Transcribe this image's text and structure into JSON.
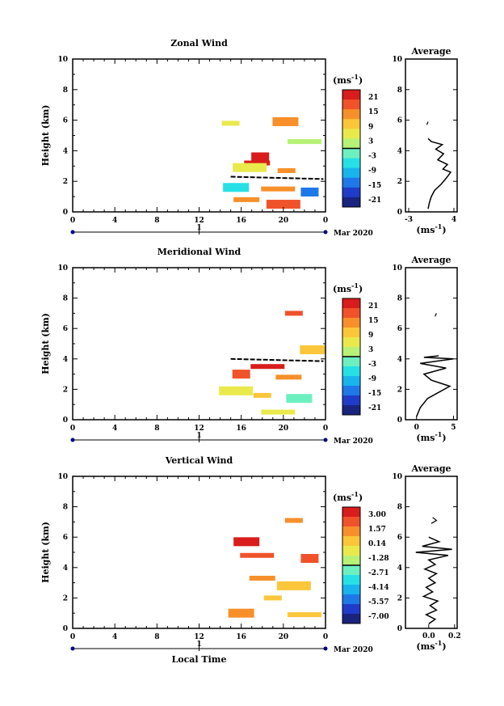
{
  "chart_data": [
    {
      "type": "heatmap",
      "title": "Zonal Wind",
      "ylabel": "Height (km)",
      "xlabel": "",
      "x_ticks": [
        "0",
        "4",
        "8",
        "12",
        "16",
        "20",
        "0"
      ],
      "y_ticks": [
        "0",
        "2",
        "4",
        "6",
        "8",
        "10"
      ],
      "xlim": [
        0,
        24
      ],
      "ylim": [
        0,
        10
      ],
      "date_marker": "1",
      "date_label": "Mar 2020",
      "colorbar": {
        "unit": "(ms",
        "unit_sup": "-1",
        "unit_close": ")",
        "ticks": [
          "21",
          "15",
          "9",
          "3",
          "-3",
          "-9",
          "-15",
          "-21"
        ]
      },
      "cells": [
        {
          "x": 15.0,
          "y": 5.8,
          "v": 3
        },
        {
          "x": 20.2,
          "y": 5.9,
          "v": 5
        },
        {
          "x": 22.0,
          "y": 4.6,
          "v": 1
        },
        {
          "x": 17.8,
          "y": 3.6,
          "v": 9
        },
        {
          "x": 17.5,
          "y": 3.2,
          "v": 9
        },
        {
          "x": 16.8,
          "y": 2.9,
          "v": 3
        },
        {
          "x": 20.3,
          "y": 2.7,
          "v": 6
        },
        {
          "x": 15.5,
          "y": 1.6,
          "v": -3
        },
        {
          "x": 19.5,
          "y": 1.5,
          "v": 5
        },
        {
          "x": 22.5,
          "y": 1.3,
          "v": -5
        },
        {
          "x": 16.5,
          "y": 0.8,
          "v": 6
        },
        {
          "x": 20.0,
          "y": 0.5,
          "v": 8
        }
      ],
      "contour_height_km": 2.3,
      "average": {
        "title": "Average",
        "xlabel": "(ms",
        "xlabel_sup": "-1",
        "xlabel_close": ")",
        "x_ticks": [
          "-3",
          "4"
        ],
        "xlim": [
          -3.5,
          4.5
        ],
        "ylim": [
          0,
          10
        ],
        "y_ticks": [
          "0",
          "2",
          "4",
          "6",
          "8",
          "10"
        ],
        "profile": [
          {
            "x": 0.0,
            "y": 0.2
          },
          {
            "x": 0.2,
            "y": 0.6
          },
          {
            "x": 0.5,
            "y": 1.0
          },
          {
            "x": 1.0,
            "y": 1.4
          },
          {
            "x": 2.0,
            "y": 1.8
          },
          {
            "x": 2.8,
            "y": 2.2
          },
          {
            "x": 3.5,
            "y": 2.6
          },
          {
            "x": 2.3,
            "y": 2.8
          },
          {
            "x": 3.0,
            "y": 3.1
          },
          {
            "x": 1.5,
            "y": 3.4
          },
          {
            "x": 2.4,
            "y": 3.8
          },
          {
            "x": 1.2,
            "y": 4.1
          },
          {
            "x": 2.2,
            "y": 4.4
          },
          {
            "x": 0.5,
            "y": 4.6
          },
          {
            "x": 0.0,
            "y": 4.8
          }
        ],
        "profile_upper": [
          {
            "x": -0.2,
            "y": 5.7
          },
          {
            "x": 0.0,
            "y": 5.9
          }
        ]
      }
    },
    {
      "type": "heatmap",
      "title": "Meridional Wind",
      "ylabel": "Height (km)",
      "xlabel": "",
      "x_ticks": [
        "0",
        "4",
        "8",
        "12",
        "16",
        "20",
        "0"
      ],
      "y_ticks": [
        "0",
        "2",
        "4",
        "6",
        "8",
        "10"
      ],
      "xlim": [
        0,
        24
      ],
      "ylim": [
        0,
        10
      ],
      "date_marker": "1",
      "date_label": "Mar 2020",
      "colorbar": {
        "unit": "(ms",
        "unit_sup": "-1",
        "unit_close": ")",
        "ticks": [
          "21",
          "15",
          "9",
          "3",
          "-3",
          "-9",
          "-15",
          "-21"
        ]
      },
      "cells": [
        {
          "x": 21.0,
          "y": 7.0,
          "v": 5
        },
        {
          "x": 22.8,
          "y": 4.6,
          "v": 3
        },
        {
          "x": 18.5,
          "y": 3.5,
          "v": 6
        },
        {
          "x": 16.0,
          "y": 3.0,
          "v": 5
        },
        {
          "x": 20.5,
          "y": 2.8,
          "v": 4
        },
        {
          "x": 15.5,
          "y": 1.9,
          "v": 2
        },
        {
          "x": 18.0,
          "y": 1.6,
          "v": 3
        },
        {
          "x": 21.5,
          "y": 1.4,
          "v": -1
        },
        {
          "x": 19.5,
          "y": 0.5,
          "v": 2
        }
      ],
      "contour_height_km": 4.0,
      "average": {
        "title": "Average",
        "xlabel": "(ms",
        "xlabel_sup": "-1",
        "xlabel_close": ")",
        "x_ticks": [
          "0",
          "5"
        ],
        "xlim": [
          -1.5,
          5.5
        ],
        "ylim": [
          0,
          10
        ],
        "y_ticks": [
          "0",
          "2",
          "4",
          "6",
          "8",
          "10"
        ],
        "profile": [
          {
            "x": 0.0,
            "y": 0.2
          },
          {
            "x": 0.5,
            "y": 0.8
          },
          {
            "x": 1.5,
            "y": 1.4
          },
          {
            "x": 3.0,
            "y": 1.8
          },
          {
            "x": 4.5,
            "y": 2.2
          },
          {
            "x": 2.0,
            "y": 2.6
          },
          {
            "x": 1.0,
            "y": 3.0
          },
          {
            "x": 4.0,
            "y": 3.4
          },
          {
            "x": 0.5,
            "y": 3.7
          },
          {
            "x": 5.0,
            "y": 4.0
          },
          {
            "x": 1.0,
            "y": 4.1
          },
          {
            "x": 3.0,
            "y": 4.2
          }
        ],
        "profile_upper": [
          {
            "x": 2.5,
            "y": 6.8
          },
          {
            "x": 2.7,
            "y": 7.0
          }
        ]
      }
    },
    {
      "type": "heatmap",
      "title": "Vertical Wind",
      "ylabel": "Height (km)",
      "xlabel": "Local Time",
      "x_ticks": [
        "0",
        "4",
        "8",
        "12",
        "16",
        "20",
        "0"
      ],
      "y_ticks": [
        "0",
        "2",
        "4",
        "6",
        "8",
        "10"
      ],
      "xlim": [
        0,
        24
      ],
      "ylim": [
        0,
        10
      ],
      "date_marker": "1",
      "date_label": "Mar 2020",
      "colorbar": {
        "unit": "(ms",
        "unit_sup": "-1",
        "unit_close": ")",
        "ticks": [
          "3.00",
          "1.57",
          "0.14",
          "-1.28",
          "-2.71",
          "-4.14",
          "-5.57",
          "-7.00"
        ]
      },
      "cells": [
        {
          "x": 21.0,
          "y": 7.1,
          "v": 0.4
        },
        {
          "x": 16.5,
          "y": 5.7,
          "v": 0.6
        },
        {
          "x": 17.5,
          "y": 4.8,
          "v": 0.5
        },
        {
          "x": 22.5,
          "y": 4.6,
          "v": 0.5
        },
        {
          "x": 18.0,
          "y": 3.3,
          "v": 0.4
        },
        {
          "x": 21.0,
          "y": 2.8,
          "v": 0.3
        },
        {
          "x": 19.0,
          "y": 2.0,
          "v": 0.3
        },
        {
          "x": 16.0,
          "y": 1.0,
          "v": 0.4
        },
        {
          "x": 22.0,
          "y": 0.9,
          "v": 0.3
        }
      ],
      "contour_height_km": null,
      "average": {
        "title": "Average",
        "xlabel": "(ms",
        "xlabel_sup": "-1",
        "xlabel_close": ")",
        "x_ticks": [
          "0.0",
          "0.2"
        ],
        "xlim": [
          -0.18,
          0.22
        ],
        "ylim": [
          0,
          10
        ],
        "y_ticks": [
          "0",
          "2",
          "4",
          "6",
          "8",
          "10"
        ],
        "profile": [
          {
            "x": 0.0,
            "y": 0.3
          },
          {
            "x": 0.05,
            "y": 0.6
          },
          {
            "x": -0.02,
            "y": 0.9
          },
          {
            "x": 0.06,
            "y": 1.2
          },
          {
            "x": 0.01,
            "y": 1.5
          },
          {
            "x": 0.07,
            "y": 1.8
          },
          {
            "x": -0.04,
            "y": 2.1
          },
          {
            "x": 0.03,
            "y": 2.4
          },
          {
            "x": -0.02,
            "y": 2.7
          },
          {
            "x": 0.05,
            "y": 3.0
          },
          {
            "x": 0.0,
            "y": 3.3
          },
          {
            "x": 0.06,
            "y": 3.6
          },
          {
            "x": -0.03,
            "y": 3.9
          },
          {
            "x": 0.05,
            "y": 4.2
          },
          {
            "x": 0.0,
            "y": 4.5
          },
          {
            "x": 0.15,
            "y": 4.8
          },
          {
            "x": -0.1,
            "y": 5.0
          },
          {
            "x": 0.18,
            "y": 5.2
          },
          {
            "x": -0.05,
            "y": 5.4
          },
          {
            "x": 0.08,
            "y": 5.7
          },
          {
            "x": 0.0,
            "y": 6.0
          }
        ],
        "profile_upper": [
          {
            "x": 0.02,
            "y": 6.9
          },
          {
            "x": 0.06,
            "y": 7.1
          },
          {
            "x": 0.03,
            "y": 7.3
          }
        ]
      }
    }
  ]
}
